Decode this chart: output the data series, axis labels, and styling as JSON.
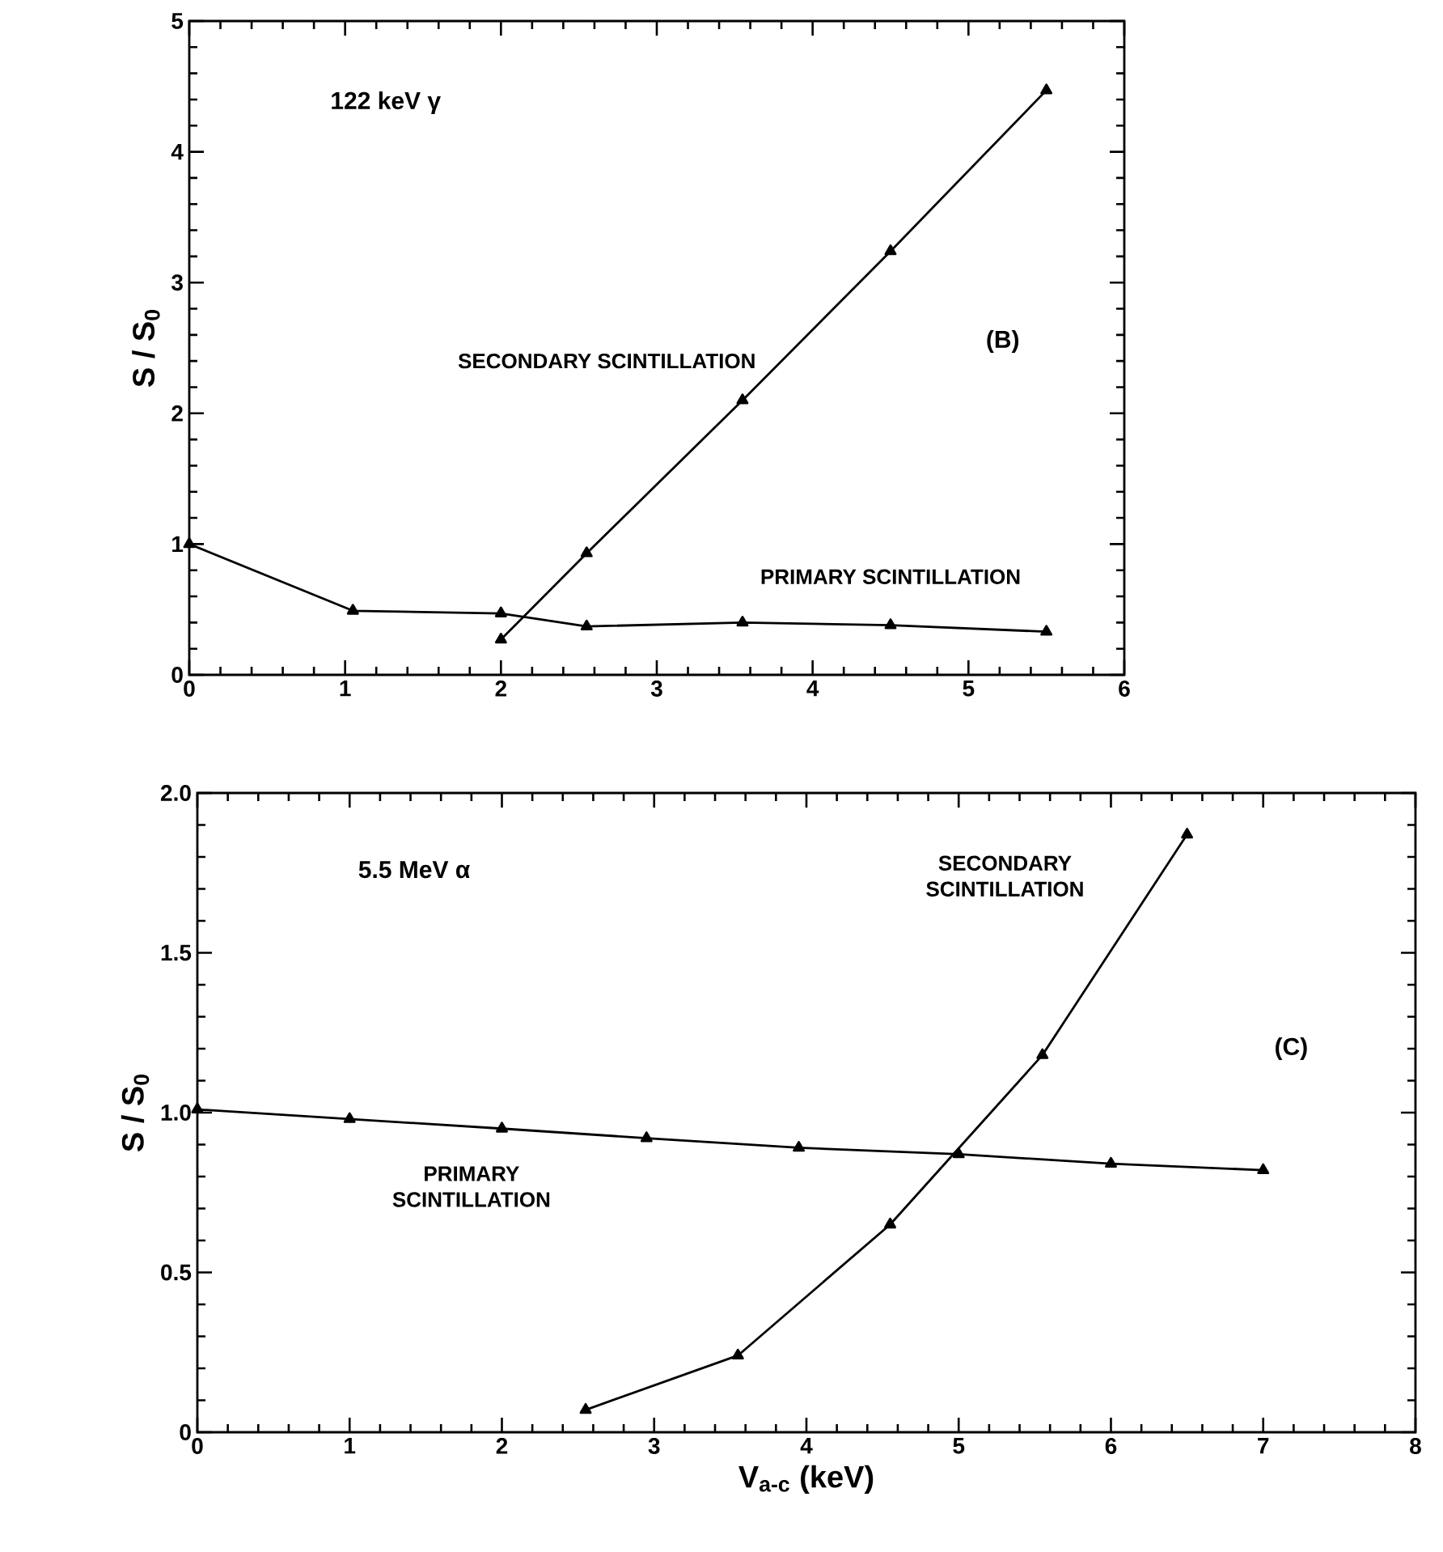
{
  "chart_data": [
    {
      "type": "line",
      "ylabel": "S / S$_{0}$",
      "marker": "triangle",
      "line_style": "solid",
      "xlim": [
        0,
        6
      ],
      "xticks": [
        0,
        1,
        2,
        3,
        4,
        5,
        6
      ],
      "ylim": [
        0,
        5
      ],
      "yticks": [
        0,
        1,
        2,
        3,
        4,
        5
      ],
      "annotations": [
        "122 keV γ",
        "(B)"
      ],
      "series": [
        {
          "name": "SECONDARY SCINTILLATION",
          "color": "#000000",
          "x": [
            2.0,
            2.55,
            3.55,
            4.5,
            5.5
          ],
          "values": [
            0.27,
            0.93,
            2.1,
            3.24,
            4.47
          ]
        },
        {
          "name": "PRIMARY SCINTILLATION",
          "color": "#000000",
          "x": [
            0,
            1.05,
            2.0,
            2.55,
            3.55,
            4.5,
            5.5
          ],
          "values": [
            1.0,
            0.49,
            0.47,
            0.37,
            0.4,
            0.38,
            0.33
          ]
        }
      ]
    },
    {
      "type": "line",
      "xlabel": "V$_{a-c}$ (keV)",
      "ylabel": "S / S$_{0}$",
      "marker": "triangle",
      "line_style": "solid",
      "xlim": [
        0,
        8
      ],
      "xticks": [
        0,
        1,
        2,
        3,
        4,
        5,
        6,
        7,
        8
      ],
      "ylim": [
        0,
        2
      ],
      "yticks": [
        0,
        0.5,
        {
          "value": 1,
          "label": "1.0"
        },
        1.5,
        {
          "value": 2,
          "label": "2.0"
        }
      ],
      "annotations": [
        "5.5 MeV α",
        "(C)"
      ],
      "series": [
        {
          "name": "SECONDARY SCINTILLATION",
          "color": "#000000",
          "x": [
            2.55,
            3.55,
            4.55,
            5.55,
            6.5
          ],
          "values": [
            0.07,
            0.24,
            0.65,
            1.18,
            1.87
          ]
        },
        {
          "name": "PRIMARY SCINTILLATION",
          "color": "#000000",
          "x": [
            0,
            1,
            2,
            2.95,
            3.95,
            5,
            6,
            7
          ],
          "values": [
            1.01,
            0.98,
            0.95,
            0.92,
            0.89,
            0.87,
            0.84,
            0.82
          ]
        }
      ]
    }
  ]
}
